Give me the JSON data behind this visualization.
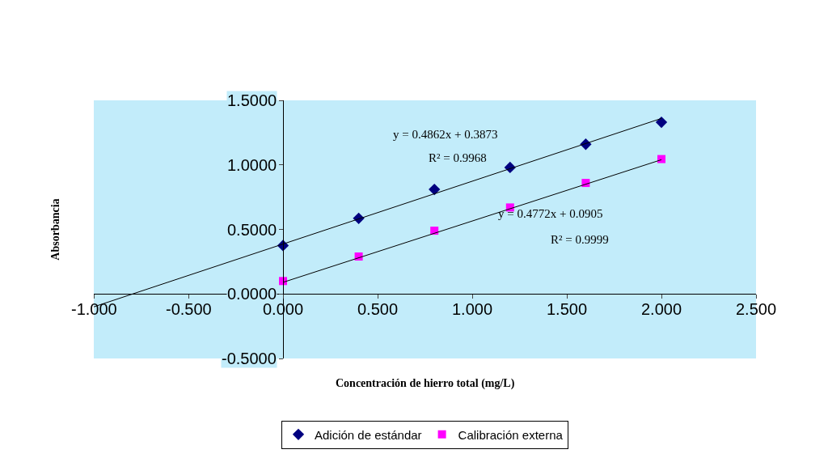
{
  "chart_data": {
    "type": "scatter",
    "xlabel": "Concentración de hierro total (mg/L)",
    "ylabel": "Absorbancia",
    "x": [
      0,
      0.4,
      0.8,
      1.2,
      1.6,
      2.0
    ],
    "series": [
      {
        "name": "Adición de estándar",
        "color": "#000080",
        "marker": "diamond",
        "values": [
          0.375,
          0.586,
          0.81,
          0.98,
          1.16,
          1.33
        ]
      },
      {
        "name": "Calibración externa",
        "color": "#ff00ff",
        "marker": "square",
        "values": [
          0.1,
          0.29,
          0.49,
          0.67,
          0.86,
          1.045
        ]
      },
      {
        "type": "line",
        "color": "#000000",
        "x": [
          -1.0,
          2.0
        ],
        "values": [
          -0.1,
          1.36
        ]
      },
      {
        "type": "line",
        "color": "#000000",
        "x": [
          0,
          2.0
        ],
        "values": [
          0.09,
          1.04
        ]
      }
    ],
    "annotations": [
      "y = 0.4862x + 0.3873",
      "R² = 0.9968",
      "y = 0.4772x + 0.0905",
      "R² = 0.9999"
    ],
    "xlim": [
      -1.0,
      2.5
    ],
    "xticks": [
      {
        "value": -1.0,
        "label": "-1.000"
      },
      {
        "value": -0.5,
        "label": "-0.500"
      },
      {
        "value": 0,
        "label": "0.000"
      },
      {
        "value": 0.5,
        "label": "0.500"
      },
      {
        "value": 1.0,
        "label": "1.000"
      },
      {
        "value": 1.5,
        "label": "1.500"
      },
      {
        "value": 2.0,
        "label": "2.000"
      },
      {
        "value": 2.5,
        "label": "2.500"
      }
    ],
    "ylim": [
      -0.5,
      1.5
    ],
    "yticks": [
      {
        "value": -0.5,
        "label": "-0.5000"
      },
      {
        "value": 0,
        "label": "0.0000"
      },
      {
        "value": 0.5,
        "label": "0.5000"
      },
      {
        "value": 1.0,
        "label": "1.0000"
      },
      {
        "value": 1.5,
        "label": "1.5000"
      }
    ],
    "grid": false,
    "legend": "bottom"
  }
}
